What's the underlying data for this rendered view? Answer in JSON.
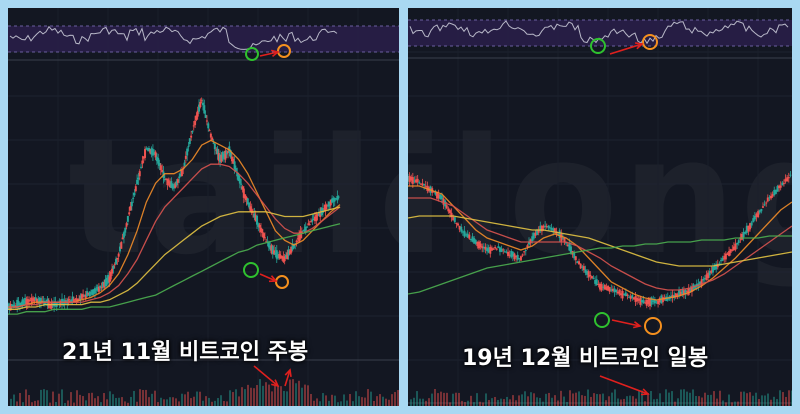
{
  "watermark": "tailong",
  "colors": {
    "background": "#131722",
    "frame": "#a9d8f2",
    "rsi_band": "#2a1f4a",
    "rsi_line": "#b8b8c8",
    "candle_up": "#26a69a",
    "candle_down": "#ef5350",
    "ma_fast": "#f28c28",
    "ma_mid": "#d9534f",
    "ma_slow": "#e3c343",
    "ma_long": "#4caf50",
    "marker_green": "#2fc12f",
    "marker_orange": "#f5901e",
    "arrow": "#e0201e"
  },
  "chart_data": [
    {
      "type": "line",
      "caption": "21년 11월 비트코인 주봉",
      "description_series": [
        {
          "role": "price",
          "values": [
            8,
            9,
            10,
            11,
            10,
            9,
            10,
            11,
            12,
            14,
            16,
            20,
            30,
            45,
            60,
            75,
            72,
            62,
            58,
            66,
            82,
            95,
            80,
            70,
            74,
            62,
            52,
            44,
            36,
            30,
            28,
            34,
            40,
            44,
            48,
            52,
            55
          ]
        },
        {
          "role": "ma_fast",
          "values": [
            8,
            8,
            9,
            10,
            10,
            10,
            10,
            10,
            11,
            12,
            14,
            17,
            22,
            30,
            40,
            52,
            60,
            64,
            64,
            66,
            70,
            76,
            78,
            76,
            74,
            70,
            64,
            56,
            48,
            40,
            36,
            34,
            36,
            40,
            44,
            48,
            51
          ]
        },
        {
          "role": "ma_mid",
          "values": [
            8,
            8,
            9,
            9,
            10,
            10,
            10,
            10,
            10,
            11,
            12,
            14,
            17,
            22,
            28,
            36,
            44,
            50,
            54,
            58,
            62,
            66,
            68,
            68,
            67,
            64,
            60,
            55,
            50,
            45,
            41,
            39,
            39,
            41,
            44,
            47,
            50
          ]
        },
        {
          "role": "ma_slow",
          "values": [
            7,
            7,
            8,
            8,
            9,
            9,
            9,
            9,
            9,
            10,
            10,
            11,
            13,
            15,
            18,
            22,
            26,
            30,
            33,
            36,
            39,
            42,
            44,
            46,
            47,
            48,
            48,
            48,
            48,
            47,
            46,
            46,
            46,
            47,
            48,
            49,
            50
          ]
        },
        {
          "role": "ma_long",
          "values": [
            5,
            5,
            6,
            6,
            6,
            7,
            7,
            7,
            7,
            8,
            8,
            8,
            9,
            10,
            11,
            12,
            13,
            15,
            17,
            19,
            21,
            23,
            25,
            27,
            29,
            31,
            32,
            34,
            35,
            36,
            37,
            38,
            39,
            40,
            41,
            42,
            43
          ]
        }
      ],
      "markers": [
        {
          "color": "green",
          "location": "rsi-low"
        },
        {
          "color": "orange",
          "location": "rsi-higher-low"
        },
        {
          "color": "green",
          "location": "price-low"
        },
        {
          "color": "orange",
          "location": "price-lower-low"
        }
      ]
    },
    {
      "type": "line",
      "caption": "19년 12월 비트코인 일봉",
      "description_series": [
        {
          "role": "price",
          "values": [
            70,
            68,
            64,
            60,
            50,
            42,
            38,
            34,
            35,
            32,
            30,
            40,
            46,
            44,
            38,
            28,
            22,
            16,
            14,
            12,
            10,
            8,
            8,
            10,
            12,
            14,
            18,
            24,
            30,
            36,
            44,
            52,
            60,
            66,
            72
          ]
        },
        {
          "role": "ma_fast",
          "values": [
            66,
            66,
            64,
            62,
            56,
            50,
            44,
            40,
            38,
            36,
            34,
            36,
            40,
            42,
            40,
            36,
            30,
            24,
            18,
            15,
            12,
            10,
            9,
            10,
            11,
            13,
            16,
            20,
            25,
            30,
            36,
            42,
            48,
            54,
            58
          ]
        },
        {
          "role": "ma_mid",
          "values": [
            60,
            60,
            60,
            58,
            56,
            52,
            48,
            44,
            42,
            40,
            38,
            38,
            38,
            38,
            38,
            36,
            33,
            30,
            26,
            23,
            20,
            17,
            15,
            14,
            14,
            15,
            17,
            19,
            22,
            26,
            30,
            34,
            38,
            42,
            46
          ]
        },
        {
          "role": "ma_slow",
          "values": [
            50,
            51,
            51,
            51,
            51,
            50,
            49,
            48,
            47,
            46,
            45,
            44,
            44,
            43,
            42,
            41,
            40,
            38,
            36,
            34,
            32,
            30,
            28,
            27,
            26,
            26,
            26,
            26,
            27,
            28,
            29,
            30,
            31,
            32,
            33
          ]
        },
        {
          "role": "ma_long",
          "values": [
            12,
            13,
            15,
            17,
            19,
            21,
            23,
            25,
            26,
            27,
            28,
            29,
            30,
            31,
            32,
            33,
            34,
            35,
            35,
            36,
            36,
            37,
            37,
            38,
            38,
            38,
            39,
            39,
            39,
            40,
            40,
            40,
            41,
            41,
            41
          ]
        }
      ],
      "markers": [
        {
          "color": "green",
          "location": "rsi-low"
        },
        {
          "color": "orange",
          "location": "rsi-higher-low"
        },
        {
          "color": "green",
          "location": "price-low"
        },
        {
          "color": "orange",
          "location": "price-lower-low"
        }
      ]
    }
  ]
}
